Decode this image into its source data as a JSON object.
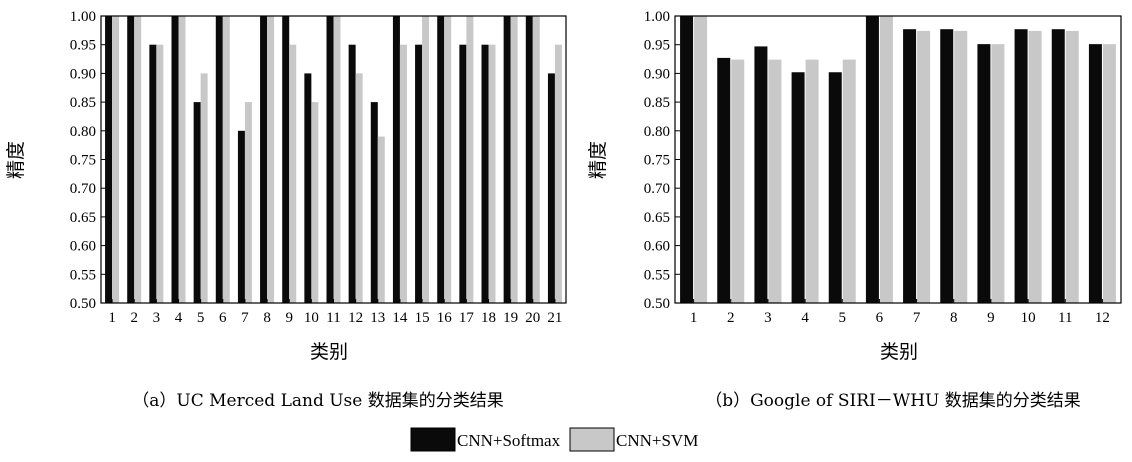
{
  "colors": {
    "softmax": "#0a0a0a",
    "svm": "#c8c8c8",
    "axis": "#000000"
  },
  "legend": {
    "items": [
      {
        "key": "softmax",
        "label": "CNN+Softmax"
      },
      {
        "key": "svm",
        "label": "CNN+SVM"
      }
    ]
  },
  "chart_data": [
    {
      "type": "bar",
      "caption": "（a）UC Merced Land Use 数据集的分类结果",
      "xlabel": "类别",
      "ylabel": "精度",
      "ylim": [
        0.5,
        1.0
      ],
      "yticks": [
        "0.50",
        "0.55",
        "0.60",
        "0.65",
        "0.70",
        "0.75",
        "0.80",
        "0.85",
        "0.90",
        "0.95",
        "1.00"
      ],
      "categories": [
        "1",
        "2",
        "3",
        "4",
        "5",
        "6",
        "7",
        "8",
        "9",
        "10",
        "11",
        "12",
        "13",
        "14",
        "15",
        "16",
        "17",
        "18",
        "19",
        "20",
        "21"
      ],
      "series": [
        {
          "name": "CNN+Softmax",
          "key": "softmax",
          "values": [
            1.0,
            1.0,
            0.95,
            1.0,
            0.85,
            1.0,
            0.8,
            1.0,
            1.0,
            0.9,
            1.0,
            0.95,
            0.85,
            1.0,
            0.95,
            1.0,
            0.95,
            0.95,
            1.0,
            1.0,
            0.9
          ]
        },
        {
          "name": "CNN+SVM",
          "key": "svm",
          "values": [
            1.0,
            1.0,
            0.95,
            1.0,
            0.9,
            1.0,
            0.85,
            1.0,
            0.95,
            0.85,
            1.0,
            0.9,
            0.79,
            0.95,
            1.0,
            1.0,
            1.0,
            0.95,
            1.0,
            1.0,
            0.95
          ]
        }
      ],
      "grid": false
    },
    {
      "type": "bar",
      "caption": "（b）Google of SIRI－WHU 数据集的分类结果",
      "xlabel": "类别",
      "ylabel": "精度",
      "ylim": [
        0.5,
        1.0
      ],
      "yticks": [
        "0.50",
        "0.55",
        "0.60",
        "0.65",
        "0.70",
        "0.75",
        "0.80",
        "0.85",
        "0.90",
        "0.95",
        "1.00"
      ],
      "categories": [
        "1",
        "2",
        "3",
        "4",
        "5",
        "6",
        "7",
        "8",
        "9",
        "10",
        "11",
        "12"
      ],
      "series": [
        {
          "name": "CNN+Softmax",
          "key": "softmax",
          "values": [
            1.0,
            0.927,
            0.947,
            0.902,
            0.902,
            1.0,
            0.977,
            0.977,
            0.951,
            0.977,
            0.977,
            0.951
          ]
        },
        {
          "name": "CNN+SVM",
          "key": "svm",
          "values": [
            1.0,
            0.924,
            0.924,
            0.924,
            0.924,
            1.0,
            0.974,
            0.974,
            0.951,
            0.974,
            0.974,
            0.951
          ]
        }
      ],
      "grid": false
    }
  ]
}
